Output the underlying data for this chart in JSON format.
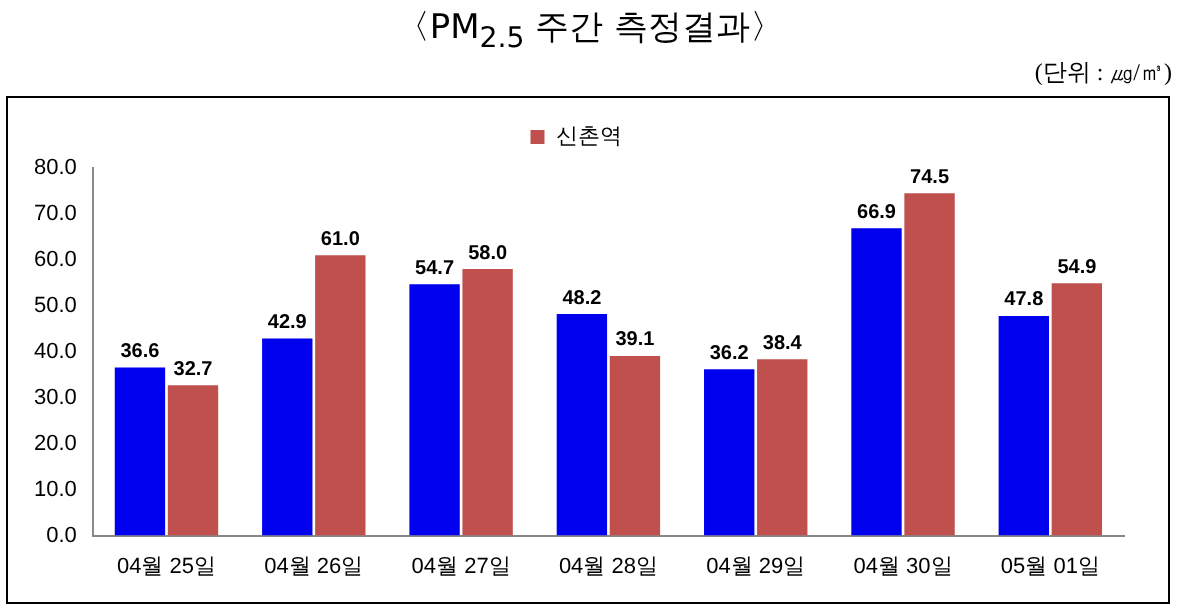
{
  "chart_data": {
    "type": "bar",
    "title": "〈PM$_{2.5}$ 주간 측정결과〉",
    "annotations": [
      "(단위 : ㎍/㎥)"
    ],
    "categories": [
      "04월 25일",
      "04월 26일",
      "04월 27일",
      "04월 28일",
      "04월 29일",
      "04월 30일",
      "05월 01일"
    ],
    "series": [
      {
        "color": "#0000ee",
        "values": [
          36.6,
          42.9,
          54.7,
          48.2,
          36.2,
          66.9,
          47.8
        ],
        "value_labels": [
          "36.6",
          "42.9",
          "54.7",
          "48.2",
          "36.2",
          "66.9",
          "47.8"
        ]
      },
      {
        "name": "신촌역",
        "color": "#c0504d",
        "values": [
          32.7,
          61.0,
          58.0,
          39.1,
          38.4,
          74.5,
          54.9
        ],
        "value_labels": [
          "32.7",
          "61.0",
          "58.0",
          "39.1",
          "38.4",
          "74.5",
          "54.9"
        ]
      }
    ],
    "ylim": [
      0,
      80
    ],
    "yticks": [
      {
        "value": 0,
        "label": "0.0"
      },
      {
        "value": 10,
        "label": "10.0"
      },
      {
        "value": 20,
        "label": "20.0"
      },
      {
        "value": 30,
        "label": "30.0"
      },
      {
        "value": 40,
        "label": "40.0"
      },
      {
        "value": 50,
        "label": "50.0"
      },
      {
        "value": 60,
        "label": "60.0"
      },
      {
        "value": 70,
        "label": "70.0"
      },
      {
        "value": 80,
        "label": "80.0"
      }
    ],
    "legend": "top",
    "grid": false
  }
}
